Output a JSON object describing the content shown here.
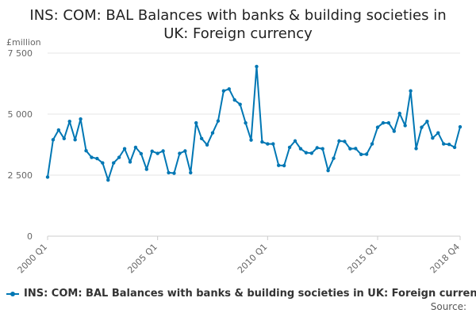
{
  "chart_data": {
    "type": "line",
    "title": "INS: COM: BAL Balances with banks & building societies in UK: Foreign currency",
    "title_lines": [
      "INS: COM: BAL Balances with banks & building societies in",
      "UK: Foreign currency"
    ],
    "ylabel": "£million",
    "xlabel": "",
    "ylim": [
      0,
      7500
    ],
    "yticks": [
      0,
      2500,
      5000,
      7500
    ],
    "ytick_labels": [
      "0",
      "2 500",
      "5 000",
      "7 500"
    ],
    "xtick_labels": [
      "2000 Q1",
      "2005 Q1",
      "2010 Q1",
      "2015 Q1",
      "2018 Q4"
    ],
    "xtick_index": [
      0,
      20,
      40,
      60,
      75
    ],
    "grid": true,
    "legend": "bottom",
    "series": [
      {
        "name": "INS: COM: BAL Balances with banks & building societies in UK: Foreign currency",
        "color": "#0077b4",
        "x": [
          "2000 Q1",
          "2000 Q2",
          "2000 Q3",
          "2000 Q4",
          "2001 Q1",
          "2001 Q2",
          "2001 Q3",
          "2001 Q4",
          "2002 Q1",
          "2002 Q2",
          "2002 Q3",
          "2002 Q4",
          "2003 Q1",
          "2003 Q2",
          "2003 Q3",
          "2003 Q4",
          "2004 Q1",
          "2004 Q2",
          "2004 Q3",
          "2004 Q4",
          "2005 Q1",
          "2005 Q2",
          "2005 Q3",
          "2005 Q4",
          "2006 Q1",
          "2006 Q2",
          "2006 Q3",
          "2006 Q4",
          "2007 Q1",
          "2007 Q2",
          "2007 Q3",
          "2007 Q4",
          "2008 Q1",
          "2008 Q2",
          "2008 Q3",
          "2008 Q4",
          "2009 Q1",
          "2009 Q2",
          "2009 Q3",
          "2009 Q4",
          "2010 Q1",
          "2010 Q2",
          "2010 Q3",
          "2010 Q4",
          "2011 Q1",
          "2011 Q2",
          "2011 Q3",
          "2011 Q4",
          "2012 Q1",
          "2012 Q2",
          "2012 Q3",
          "2012 Q4",
          "2013 Q1",
          "2013 Q2",
          "2013 Q3",
          "2013 Q4",
          "2014 Q1",
          "2014 Q2",
          "2014 Q3",
          "2014 Q4",
          "2015 Q1",
          "2015 Q2",
          "2015 Q3",
          "2015 Q4",
          "2016 Q1",
          "2016 Q2",
          "2016 Q3",
          "2016 Q4",
          "2017 Q1",
          "2017 Q2",
          "2017 Q3",
          "2017 Q4",
          "2018 Q1",
          "2018 Q2",
          "2018 Q3",
          "2018 Q4"
        ],
        "values": [
          2420,
          3950,
          4350,
          4000,
          4700,
          3950,
          4800,
          3500,
          3230,
          3180,
          3000,
          2300,
          3000,
          3230,
          3580,
          3040,
          3640,
          3380,
          2740,
          3480,
          3390,
          3490,
          2600,
          2580,
          3390,
          3490,
          2600,
          4640,
          4000,
          3740,
          4230,
          4720,
          5950,
          6030,
          5580,
          5400,
          4640,
          3940,
          6950,
          3860,
          3780,
          3780,
          2900,
          2890,
          3640,
          3900,
          3580,
          3420,
          3400,
          3620,
          3580,
          2690,
          3190,
          3900,
          3880,
          3580,
          3590,
          3350,
          3360,
          3780,
          4460,
          4640,
          4640,
          4300,
          5030,
          4530,
          5950,
          3590,
          4460,
          4700,
          4020,
          4230,
          3780,
          3760,
          3640,
          4480
        ]
      }
    ]
  },
  "source": "Source:"
}
